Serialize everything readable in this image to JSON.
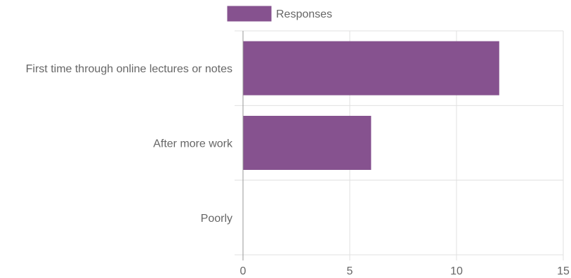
{
  "chart_data": {
    "type": "bar",
    "orientation": "horizontal",
    "categories": [
      "First time through online lectures or notes",
      "After more work",
      "Poorly"
    ],
    "series": [
      {
        "name": "Responses",
        "values": [
          12,
          6,
          0
        ],
        "color": "#86528f"
      }
    ],
    "x_ticks": [
      "0",
      "5",
      "10",
      "15"
    ],
    "xlim": [
      0,
      15
    ],
    "grid": true,
    "legend": "top-center",
    "title": "",
    "xlabel": "",
    "ylabel": ""
  }
}
